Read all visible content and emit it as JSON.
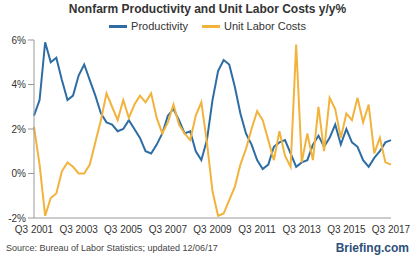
{
  "chart_data": {
    "type": "line",
    "title": "Nonfarm Productivity and Unit Labor Costs y/y%",
    "source": "Source: Bureau of Labor Statistics; updated 12/06/17",
    "credit": "Briefing.com",
    "categories": [
      "Q3 2001",
      null,
      null,
      null,
      null,
      null,
      null,
      null,
      "Q3 2003",
      null,
      null,
      null,
      null,
      null,
      null,
      null,
      "Q3 2005",
      null,
      null,
      null,
      null,
      null,
      null,
      null,
      "Q3 2007",
      null,
      null,
      null,
      null,
      null,
      null,
      null,
      "Q3 2009",
      null,
      null,
      null,
      null,
      null,
      null,
      null,
      "Q3 2011",
      null,
      null,
      null,
      null,
      null,
      null,
      null,
      "Q3 2013",
      null,
      null,
      null,
      null,
      null,
      null,
      null,
      "Q3 2015",
      null,
      null,
      null,
      null,
      null,
      null,
      null,
      "Q3 2017"
    ],
    "series": [
      {
        "name": "Productivity",
        "color": "#2e6da4",
        "values": [
          2.6,
          3.3,
          5.9,
          5.0,
          5.2,
          4.2,
          3.3,
          3.5,
          4.4,
          4.9,
          4.2,
          3.5,
          2.7,
          2.3,
          2.2,
          1.9,
          2.0,
          2.4,
          2.0,
          1.6,
          1.0,
          0.9,
          1.3,
          1.8,
          2.6,
          2.9,
          2.4,
          1.8,
          1.9,
          1.0,
          0.6,
          1.5,
          3.3,
          4.6,
          5.1,
          4.9,
          3.9,
          2.7,
          1.8,
          1.3,
          0.6,
          0.2,
          0.4,
          1.2,
          1.4,
          1.5,
          0.9,
          0.3,
          0.5,
          0.6,
          1.3,
          1.7,
          1.2,
          1.6,
          2.2,
          1.3,
          2.0,
          1.4,
          1.2,
          0.6,
          0.3,
          0.7,
          1.0,
          1.4,
          1.5
        ]
      },
      {
        "name": "Unit Labor Costs",
        "color": "#f2b33d",
        "values": [
          2.1,
          0.4,
          -1.9,
          -1.1,
          -0.9,
          0.1,
          0.5,
          0.3,
          0.0,
          0.0,
          0.4,
          1.4,
          2.4,
          3.6,
          3.0,
          2.4,
          3.3,
          2.5,
          3.1,
          3.5,
          3.2,
          3.6,
          2.5,
          1.8,
          2.3,
          3.1,
          2.2,
          1.8,
          1.5,
          2.6,
          3.2,
          1.4,
          -0.8,
          -1.9,
          -1.8,
          -1.2,
          -0.6,
          0.4,
          1.1,
          2.0,
          2.8,
          2.4,
          1.5,
          0.6,
          1.9,
          0.8,
          0.3,
          5.8,
          0.5,
          1.8,
          0.6,
          3.0,
          1.0,
          3.4,
          2.9,
          1.6,
          2.7,
          2.4,
          3.4,
          2.3,
          3.1,
          0.9,
          1.6,
          0.5,
          0.4
        ]
      }
    ],
    "ylim": [
      -2,
      6
    ],
    "yticks": [
      {
        "value": -2,
        "label": "-2%"
      },
      {
        "value": 0,
        "label": "0%"
      },
      {
        "value": 2,
        "label": "2%"
      },
      {
        "value": 4,
        "label": "4%"
      },
      {
        "value": 6,
        "label": "6%"
      }
    ],
    "grid": false,
    "legend": "top"
  }
}
